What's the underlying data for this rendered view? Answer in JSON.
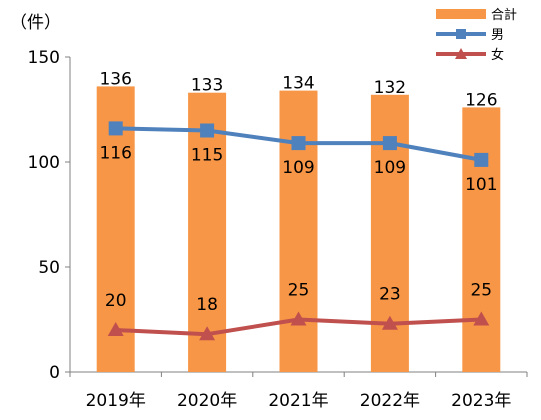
{
  "chart_data": {
    "type": "bar",
    "y_unit": "（件）",
    "categories": [
      "2019年",
      "2020年",
      "2021年",
      "2022年",
      "2023年"
    ],
    "ylim": [
      0,
      150
    ],
    "yticks": [
      0,
      50,
      100,
      150
    ],
    "grid": false,
    "legend_position": "top-right",
    "series": [
      {
        "name": "合計",
        "kind": "bar",
        "color": "#F79646",
        "values": [
          136,
          133,
          134,
          132,
          126
        ]
      },
      {
        "name": "男",
        "kind": "line",
        "marker": "square",
        "color": "#4F81BD",
        "values": [
          116,
          115,
          109,
          109,
          101
        ]
      },
      {
        "name": "女",
        "kind": "line",
        "marker": "triangle",
        "color": "#C0504D",
        "values": [
          20,
          18,
          25,
          23,
          25
        ]
      }
    ]
  }
}
